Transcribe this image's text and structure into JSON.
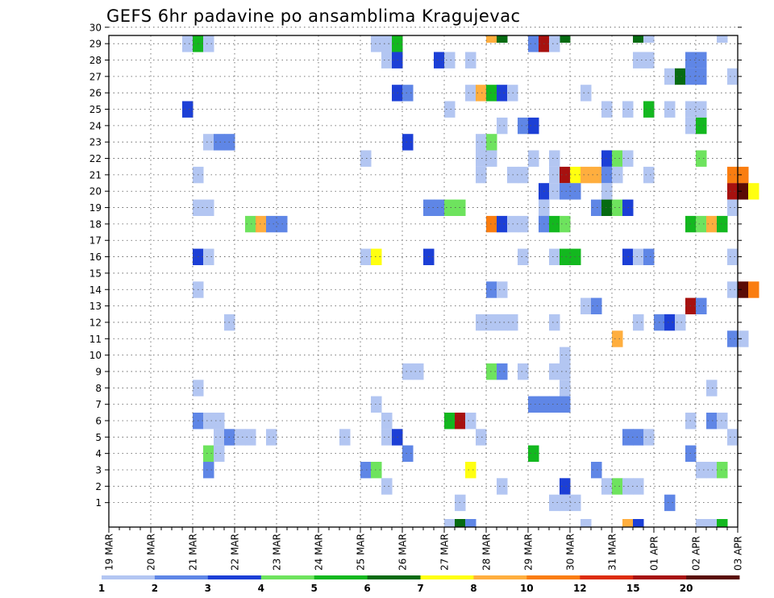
{
  "chart_data": {
    "type": "heatmap",
    "title": "GEFS 6hr padavine po ansamblima Kragujevac",
    "xlabel": "",
    "ylabel": "",
    "x_dates": [
      "19 MAR",
      "20 MAR",
      "21 MAR",
      "22 MAR",
      "23 MAR",
      "24 MAR",
      "25 MAR",
      "26 MAR",
      "27 MAR",
      "28 MAR",
      "29 MAR",
      "30 MAR",
      "31 MAR",
      "01 APR",
      "02 APR",
      "03 APR"
    ],
    "x_range": [
      "19 MAR 00Z",
      "03 APR 00Z"
    ],
    "x_step": "6hr",
    "y_ticks": [
      1,
      2,
      3,
      4,
      5,
      6,
      7,
      8,
      9,
      10,
      11,
      12,
      13,
      14,
      15,
      16,
      17,
      18,
      19,
      20,
      21,
      22,
      23,
      24,
      25,
      26,
      27,
      28,
      29,
      30
    ],
    "y_range": [
      0,
      30
    ],
    "grid": true,
    "colorbar": {
      "labels": [
        "1",
        "2",
        "3",
        "4",
        "5",
        "6",
        "7",
        "8",
        "10",
        "12",
        "15",
        "20"
      ],
      "colors": [
        "#b3c6f2",
        "#5f86e6",
        "#1c3fd6",
        "#6ee35e",
        "#13b81f",
        "#066b12",
        "#ffff10",
        "#ffae3e",
        "#fa7d10",
        "#dd2d0c",
        "#a7110f",
        "#5a0b05"
      ]
    },
    "cells": [
      {
        "m": 30,
        "t": [
          [
            4.5,
            3
          ],
          [
            13,
            1
          ],
          [
            18,
            8
          ],
          [
            18.5,
            6
          ],
          [
            21.5,
            6
          ],
          [
            25,
            6
          ],
          [
            25.5,
            1
          ],
          [
            29,
            1
          ]
        ]
      },
      {
        "m": 29,
        "t": [
          [
            3.5,
            1
          ],
          [
            4,
            5
          ],
          [
            4.5,
            1
          ],
          [
            12.5,
            1
          ],
          [
            13,
            1
          ],
          [
            13.5,
            5
          ],
          [
            20,
            2
          ],
          [
            20.5,
            11
          ],
          [
            21,
            1
          ]
        ]
      },
      {
        "m": 28,
        "t": [
          [
            13,
            1
          ],
          [
            13.5,
            3
          ],
          [
            15.5,
            3
          ],
          [
            16,
            1
          ],
          [
            17,
            1
          ],
          [
            25,
            1
          ],
          [
            25.5,
            1
          ],
          [
            27.5,
            2
          ],
          [
            28,
            2
          ]
        ]
      },
      {
        "m": 27,
        "t": [
          [
            26.5,
            1
          ],
          [
            27,
            6
          ],
          [
            27.5,
            2
          ],
          [
            28,
            2
          ],
          [
            29.5,
            1
          ]
        ]
      },
      {
        "m": 26,
        "t": [
          [
            13.5,
            3
          ],
          [
            14,
            2
          ],
          [
            17,
            1
          ],
          [
            17.5,
            8
          ],
          [
            18,
            5
          ],
          [
            18.5,
            3
          ],
          [
            19,
            1
          ],
          [
            22.5,
            1
          ]
        ]
      },
      {
        "m": 25,
        "t": [
          [
            3.5,
            3
          ],
          [
            16,
            1
          ],
          [
            23.5,
            1
          ],
          [
            24.5,
            1
          ],
          [
            25.5,
            5
          ],
          [
            26.5,
            1
          ],
          [
            27.5,
            1
          ],
          [
            28,
            1
          ]
        ]
      },
      {
        "m": 24,
        "t": [
          [
            18.5,
            1
          ],
          [
            19.5,
            2
          ],
          [
            20,
            3
          ],
          [
            27.5,
            1
          ],
          [
            28,
            5
          ]
        ]
      },
      {
        "m": 23,
        "t": [
          [
            4.5,
            1
          ],
          [
            5,
            2
          ],
          [
            5.5,
            2
          ],
          [
            14,
            3
          ],
          [
            17.5,
            1
          ],
          [
            18,
            4
          ]
        ]
      },
      {
        "m": 22,
        "t": [
          [
            12,
            1
          ],
          [
            17.5,
            1
          ],
          [
            18,
            1
          ],
          [
            20,
            1
          ],
          [
            21,
            1
          ],
          [
            23.5,
            3
          ],
          [
            24,
            4
          ],
          [
            24.5,
            1
          ],
          [
            28,
            4
          ]
        ]
      },
      {
        "m": 21,
        "t": [
          [
            4,
            1
          ],
          [
            17.5,
            1
          ],
          [
            19,
            1
          ],
          [
            19.5,
            1
          ],
          [
            21,
            1
          ],
          [
            21.5,
            11
          ],
          [
            22,
            7
          ],
          [
            22.5,
            8
          ],
          [
            23,
            8
          ],
          [
            23.5,
            2
          ],
          [
            24,
            1
          ],
          [
            25.5,
            1
          ],
          [
            29.5,
            9
          ],
          [
            30,
            9
          ]
        ]
      },
      {
        "m": 20,
        "t": [
          [
            20.5,
            3
          ],
          [
            21,
            1
          ],
          [
            21.5,
            2
          ],
          [
            22,
            2
          ],
          [
            23.5,
            1
          ],
          [
            29.5,
            11
          ],
          [
            30,
            12
          ],
          [
            30.5,
            7
          ]
        ]
      },
      {
        "m": 19,
        "t": [
          [
            4,
            1
          ],
          [
            4.5,
            1
          ],
          [
            15,
            2
          ],
          [
            15.5,
            2
          ],
          [
            16,
            4
          ],
          [
            16.5,
            4
          ],
          [
            20.5,
            1
          ],
          [
            23,
            2
          ],
          [
            23.5,
            6
          ],
          [
            24,
            4
          ],
          [
            24.5,
            3
          ],
          [
            29.5,
            1
          ]
        ]
      },
      {
        "m": 18,
        "t": [
          [
            6.5,
            4
          ],
          [
            7,
            8
          ],
          [
            7.5,
            2
          ],
          [
            8,
            2
          ],
          [
            18,
            9
          ],
          [
            18.5,
            3
          ],
          [
            19,
            1
          ],
          [
            19.5,
            1
          ],
          [
            20.5,
            2
          ],
          [
            21,
            5
          ],
          [
            21.5,
            4
          ],
          [
            27.5,
            5
          ],
          [
            28,
            4
          ],
          [
            28.5,
            8
          ],
          [
            29,
            5
          ]
        ]
      },
      {
        "m": 16,
        "t": [
          [
            4,
            3
          ],
          [
            4.5,
            1
          ],
          [
            12,
            1
          ],
          [
            12.5,
            7
          ],
          [
            15,
            3
          ],
          [
            19.5,
            1
          ],
          [
            21,
            1
          ],
          [
            21.5,
            5
          ],
          [
            22,
            5
          ],
          [
            24.5,
            3
          ],
          [
            25,
            1
          ],
          [
            25.5,
            2
          ],
          [
            29.5,
            1
          ]
        ]
      },
      {
        "m": 14,
        "t": [
          [
            4,
            1
          ],
          [
            18,
            2
          ],
          [
            18.5,
            1
          ],
          [
            29.5,
            1
          ],
          [
            30,
            12
          ],
          [
            30.5,
            9
          ]
        ]
      },
      {
        "m": 13,
        "t": [
          [
            22.5,
            1
          ],
          [
            23,
            2
          ],
          [
            27.5,
            11
          ],
          [
            28,
            2
          ]
        ]
      },
      {
        "m": 12,
        "t": [
          [
            5.5,
            1
          ],
          [
            17.5,
            1
          ],
          [
            18,
            1
          ],
          [
            18.5,
            1
          ],
          [
            19,
            1
          ],
          [
            21,
            1
          ],
          [
            25,
            1
          ],
          [
            26,
            2
          ],
          [
            26.5,
            3
          ],
          [
            27,
            1
          ]
        ]
      },
      {
        "m": 11,
        "t": [
          [
            24,
            8
          ],
          [
            29.5,
            2
          ],
          [
            30,
            1
          ]
        ]
      },
      {
        "m": 10,
        "t": [
          [
            21.5,
            1
          ]
        ]
      },
      {
        "m": 9,
        "t": [
          [
            14,
            1
          ],
          [
            14.5,
            1
          ],
          [
            18,
            4
          ],
          [
            18.5,
            2
          ],
          [
            19.5,
            1
          ],
          [
            21,
            1
          ],
          [
            21.5,
            1
          ]
        ]
      },
      {
        "m": 8,
        "t": [
          [
            4,
            1
          ],
          [
            21.5,
            1
          ],
          [
            28.5,
            1
          ]
        ]
      },
      {
        "m": 7,
        "t": [
          [
            12.5,
            1
          ],
          [
            20,
            2
          ],
          [
            20.5,
            2
          ],
          [
            21,
            2
          ],
          [
            21.5,
            2
          ]
        ]
      },
      {
        "m": 6,
        "t": [
          [
            4,
            2
          ],
          [
            4.5,
            1
          ],
          [
            5,
            1
          ],
          [
            13,
            1
          ],
          [
            16,
            5
          ],
          [
            16.5,
            11
          ],
          [
            17,
            1
          ],
          [
            27.5,
            1
          ],
          [
            28.5,
            2
          ],
          [
            29,
            1
          ]
        ]
      },
      {
        "m": 5,
        "t": [
          [
            5,
            1
          ],
          [
            5.5,
            2
          ],
          [
            6,
            1
          ],
          [
            6.5,
            1
          ],
          [
            7.5,
            1
          ],
          [
            11,
            1
          ],
          [
            13,
            1
          ],
          [
            13.5,
            3
          ],
          [
            17.5,
            1
          ],
          [
            24.5,
            2
          ],
          [
            25,
            2
          ],
          [
            25.5,
            1
          ],
          [
            29.5,
            1
          ]
        ]
      },
      {
        "m": 4,
        "t": [
          [
            4.5,
            4
          ],
          [
            5,
            1
          ],
          [
            14,
            2
          ],
          [
            20,
            5
          ],
          [
            27.5,
            2
          ]
        ]
      },
      {
        "m": 3,
        "t": [
          [
            4.5,
            2
          ],
          [
            12,
            2
          ],
          [
            12.5,
            4
          ],
          [
            17,
            7
          ],
          [
            23,
            2
          ],
          [
            28,
            1
          ],
          [
            28.5,
            1
          ],
          [
            29,
            4
          ]
        ]
      },
      {
        "m": 2,
        "t": [
          [
            13,
            1
          ],
          [
            18.5,
            1
          ],
          [
            21.5,
            3
          ],
          [
            23.5,
            1
          ],
          [
            24,
            4
          ],
          [
            24.5,
            1
          ],
          [
            25,
            1
          ]
        ]
      },
      {
        "m": 1,
        "t": [
          [
            16.5,
            1
          ],
          [
            21,
            1
          ],
          [
            21.5,
            1
          ],
          [
            22,
            1
          ],
          [
            26.5,
            2
          ]
        ]
      },
      {
        "m": 0,
        "t": [
          [
            16,
            1
          ],
          [
            16.5,
            6
          ],
          [
            17,
            2
          ],
          [
            22.5,
            1
          ],
          [
            24.5,
            8
          ],
          [
            25,
            3
          ],
          [
            28,
            1
          ],
          [
            28.5,
            1
          ],
          [
            29,
            5
          ]
        ]
      }
    ]
  }
}
